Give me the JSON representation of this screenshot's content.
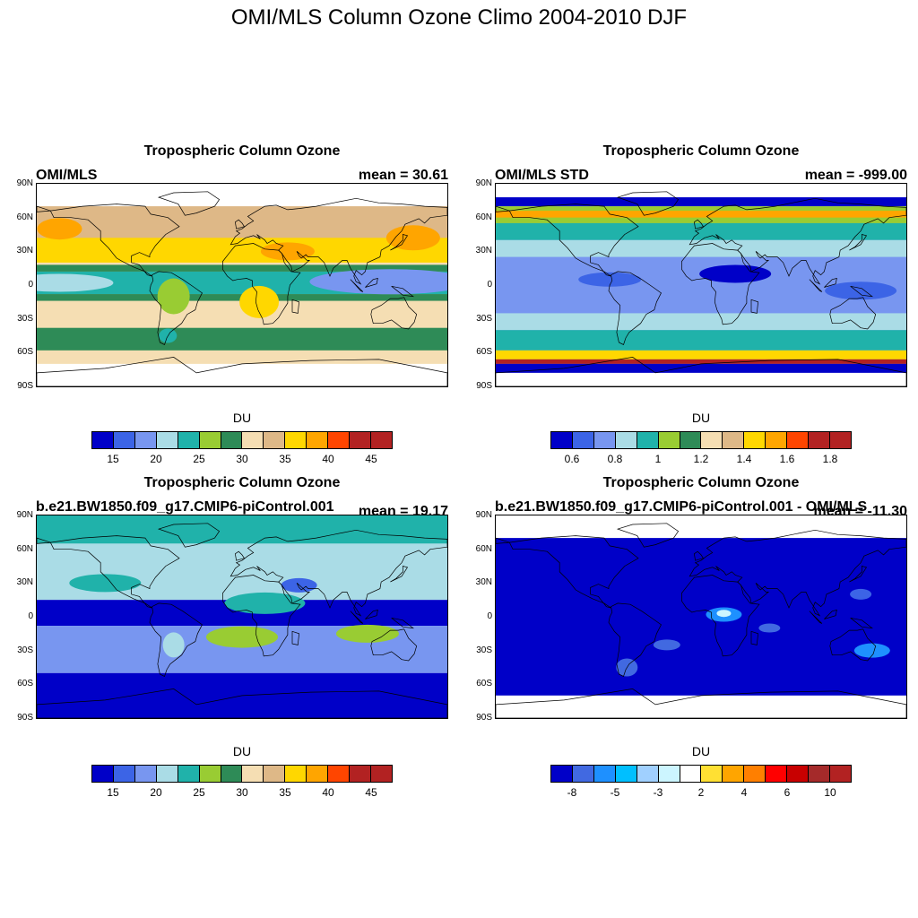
{
  "figure": {
    "title": "OMI/MLS Column Ozone Climo 2004-2010 DJF",
    "lat_labels": [
      "90N",
      "60N",
      "30N",
      "0",
      "30S",
      "60S",
      "90S"
    ]
  },
  "panels": [
    {
      "id": "omi-mls",
      "title": "Tropospheric Column Ozone",
      "left_label": "OMI/MLS",
      "right_label": "mean =  30.61",
      "units": "DU",
      "colorbar": {
        "colors": [
          "#0000c8",
          "#3c64e6",
          "#7896f0",
          "#aadce6",
          "#20b2aa",
          "#99cc33",
          "#2e8b57",
          "#f5deb3",
          "#deb887",
          "#ffd700",
          "#ffa500",
          "#ff4500",
          "#b22222",
          "#b22222"
        ],
        "tick_labels": [
          "15",
          "20",
          "25",
          "30",
          "35",
          "40",
          "45"
        ]
      },
      "map": {
        "band": "+-70",
        "description": "OMI/MLS observed climatology"
      }
    },
    {
      "id": "omi-mls-std",
      "title": "Tropospheric Column Ozone",
      "left_label": "OMI/MLS STD",
      "right_label": "mean = -999.00",
      "units": "DU",
      "colorbar": {
        "colors": [
          "#0000c8",
          "#3c64e6",
          "#7896f0",
          "#aadce6",
          "#20b2aa",
          "#99cc33",
          "#2e8b57",
          "#f5deb3",
          "#deb887",
          "#ffd700",
          "#ffa500",
          "#ff4500",
          "#b22222",
          "#b22222"
        ],
        "tick_labels": [
          "0.6",
          "0.8",
          "1",
          "1.2",
          "1.4",
          "1.6",
          "1.8"
        ]
      },
      "map": {
        "band": "+-80",
        "description": "OMI/MLS standard deviation"
      }
    },
    {
      "id": "model",
      "title": "Tropospheric Column Ozone",
      "left_label": "b.e21.BW1850.f09_g17.CMIP6-piControl.001",
      "right_label": "mean =  19.17",
      "units": "DU",
      "colorbar": {
        "colors": [
          "#0000c8",
          "#3c64e6",
          "#7896f0",
          "#aadce6",
          "#20b2aa",
          "#99cc33",
          "#2e8b57",
          "#f5deb3",
          "#deb887",
          "#ffd700",
          "#ffa500",
          "#ff4500",
          "#b22222",
          "#b22222"
        ],
        "tick_labels": [
          "15",
          "20",
          "25",
          "30",
          "35",
          "40",
          "45"
        ]
      },
      "map": {
        "band": "global",
        "description": "model climatology"
      }
    },
    {
      "id": "difference",
      "title": "Tropospheric Column Ozone",
      "left_label": "b.e21.BW1850.f09_g17.CMIP6-piControl.001 - OMI/MLS",
      "right_label": "mean = -11.30",
      "units": "DU",
      "colorbar": {
        "colors": [
          "#0000c8",
          "#4169e1",
          "#1e90ff",
          "#00bfff",
          "#a0d0ff",
          "#ccf5ff",
          "#ffffff",
          "#ffe033",
          "#ffa500",
          "#ff7f00",
          "#ff0000",
          "#c80000",
          "#a52a2a",
          "#b22222"
        ],
        "tick_labels": [
          "-8",
          "-5",
          "-3",
          "2",
          "4",
          "6",
          "10"
        ]
      },
      "map": {
        "band": "+-70",
        "description": "model minus observations"
      }
    }
  ],
  "chart_data": {
    "type": "heatmap",
    "title": "OMI/MLS Column Ozone Climo 2004-2010 DJF",
    "panels": [
      {
        "title": "Tropospheric Column Ozone",
        "subtitle": "OMI/MLS",
        "mean": 30.61,
        "units": "DU",
        "levels": [
          15,
          20,
          25,
          30,
          35,
          40,
          45
        ]
      },
      {
        "title": "Tropospheric Column Ozone",
        "subtitle": "OMI/MLS STD",
        "mean": -999.0,
        "units": "DU",
        "levels": [
          0.6,
          0.8,
          1,
          1.2,
          1.4,
          1.6,
          1.8
        ]
      },
      {
        "title": "Tropospheric Column Ozone",
        "subtitle": "b.e21.BW1850.f09_g17.CMIP6-piControl.001",
        "mean": 19.17,
        "units": "DU",
        "levels": [
          15,
          20,
          25,
          30,
          35,
          40,
          45
        ]
      },
      {
        "title": "Tropospheric Column Ozone",
        "subtitle": "b.e21.BW1850.f09_g17.CMIP6-piControl.001 - OMI/MLS",
        "mean": -11.3,
        "units": "DU",
        "levels": [
          -8,
          -5,
          -3,
          2,
          4,
          6,
          10
        ]
      }
    ],
    "y_axis": {
      "labels": [
        "90N",
        "60N",
        "30N",
        "0",
        "30S",
        "60S",
        "90S"
      ],
      "range": [
        -90,
        90
      ]
    },
    "x_axis": {
      "range": [
        -180,
        180
      ]
    }
  }
}
